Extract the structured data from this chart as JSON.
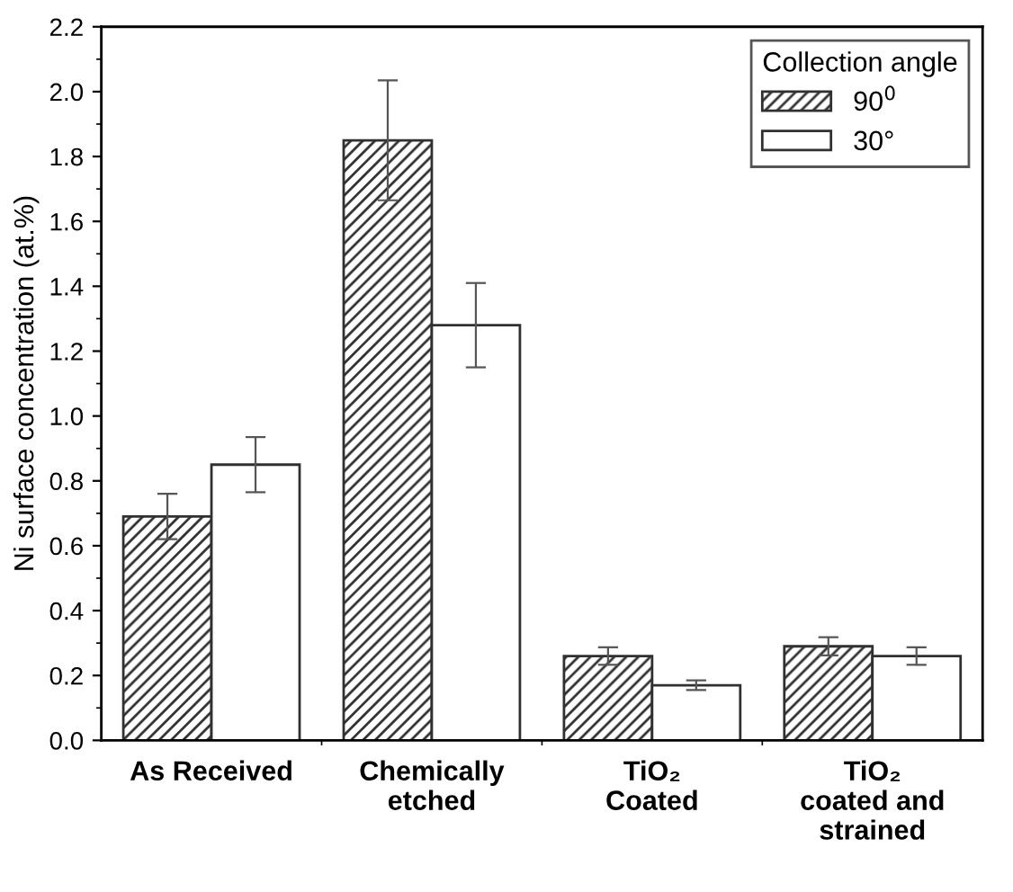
{
  "chart_data": {
    "type": "bar",
    "ylabel": "Ni surface concentration (at.%)",
    "legend_title": "Collection angle",
    "categories": [
      "As Received",
      "Chemically\netched",
      "TiO₂\nCoated",
      "TiO₂\ncoated and\nstrained"
    ],
    "series": [
      {
        "name": "90$^{0}$",
        "color": "#303030",
        "values": [
          0.69,
          1.85,
          0.26,
          0.29
        ],
        "errors": [
          0.07,
          0.185,
          0.027,
          0.028
        ]
      },
      {
        "name": "30°",
        "color": "#ffffff",
        "values": [
          0.85,
          1.28,
          0.17,
          0.26
        ],
        "errors": [
          0.085,
          0.13,
          0.015,
          0.027
        ]
      }
    ],
    "ylim": [
      0,
      2.2
    ],
    "yticks": [
      {
        "value": 0,
        "label": "0.0"
      },
      0.2,
      0.4,
      0.6,
      0.8,
      {
        "value": 1,
        "label": "1.0"
      },
      1.2,
      1.4,
      1.6,
      1.8,
      {
        "value": 2,
        "label": "2.0"
      },
      2.2
    ],
    "grid": false,
    "legend": "top right"
  }
}
